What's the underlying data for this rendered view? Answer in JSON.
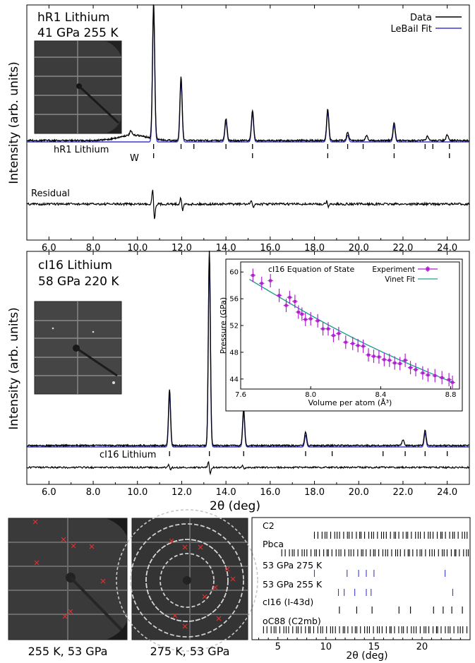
{
  "panel_a": {
    "title_line1": "hR1 Lithium",
    "title_line2": "41 GPa 255 K",
    "legend": [
      {
        "label": "Data",
        "color": "#000000"
      },
      {
        "label": "LeBail Fit",
        "color": "#3a3ad0"
      }
    ],
    "ylabel": "Intensity (arb. units)",
    "phase_labels": [
      "hR1 Lithium",
      "W"
    ],
    "residual_label": "Residual",
    "xticks": [
      "6.0",
      "8.0",
      "10.0",
      "12.0",
      "14.0",
      "16.0",
      "18.0",
      "20.0",
      "22.0",
      "24.0"
    ]
  },
  "panel_b": {
    "title_line1": "cI16 Lithium",
    "title_line2": "58 GPa 220 K",
    "ylabel": "Intensity (arb. units)",
    "phase_label": "cI16 Lithium",
    "xlabel": "2θ (deg)",
    "xticks": [
      "6.0",
      "8.0",
      "10.0",
      "12.0",
      "14.0",
      "16.0",
      "18.0",
      "20.0",
      "22.0",
      "24.0"
    ],
    "inset": {
      "title": "cI16 Equation of State",
      "legend": [
        {
          "label": "Experiment",
          "color": "#b020d0"
        },
        {
          "label": "Vinet Fit",
          "color": "#20a090"
        }
      ],
      "xlabel": "Volume per atom (Å³)",
      "ylabel": "Pressure (GPa)",
      "xticks": [
        "7.6",
        "8.0",
        "8.4",
        "8.8"
      ],
      "yticks": [
        "44",
        "48",
        "52",
        "56",
        "60"
      ]
    }
  },
  "panel_c": {
    "captions": [
      "255 K, 53 GPa",
      "275 K, 53 GPa"
    ],
    "tick_rows": [
      "C2",
      "Pbca",
      "53 GPa 275 K",
      "53 GPa 255 K",
      "cI16 (I-43d)",
      "oC88 (C2mb)"
    ],
    "xticks": [
      "5",
      "10",
      "15",
      "20"
    ],
    "xlabel": "2θ (deg)"
  },
  "colors": {
    "data": "#000000",
    "fit": "#3a3ad0",
    "experiment": "#b020d0",
    "vinet": "#20a090",
    "marker": "#e03030"
  },
  "chart_data": [
    {
      "type": "line",
      "title": "hR1 Lithium 41 GPa 255 K",
      "xlabel": "",
      "ylabel": "Intensity (arb. units)",
      "xlim": [
        5.0,
        25.0
      ],
      "series": [
        {
          "name": "Data",
          "peaks": [
            [
              9.7,
              0.03
            ],
            [
              10.73,
              1.0
            ],
            [
              11.97,
              0.47
            ],
            [
              14.0,
              0.16
            ],
            [
              15.2,
              0.22
            ],
            [
              18.6,
              0.23
            ],
            [
              19.5,
              0.06
            ],
            [
              20.35,
              0.04
            ],
            [
              21.6,
              0.13
            ],
            [
              23.1,
              0.03
            ],
            [
              24.0,
              0.04
            ]
          ]
        },
        {
          "name": "LeBail Fit",
          "peaks": [
            [
              10.73,
              0.98
            ],
            [
              11.97,
              0.45
            ],
            [
              14.0,
              0.15
            ],
            [
              15.2,
              0.21
            ],
            [
              18.6,
              0.22
            ],
            [
              19.5,
              0.05
            ],
            [
              21.6,
              0.12
            ]
          ]
        }
      ],
      "tick_marks": {
        "hR1 Lithium": [
          10.73,
          11.97,
          12.55,
          14.0,
          15.2,
          18.6,
          19.5,
          20.2,
          21.6,
          23.0,
          23.35,
          24.1
        ],
        "W": [
          10.73,
          15.2,
          18.6,
          21.6,
          24.1
        ]
      },
      "residual": {
        "spikes": [
          [
            10.73,
            0.55
          ],
          [
            12.0,
            0.25
          ],
          [
            15.2,
            0.12
          ],
          [
            18.6,
            0.1
          ]
        ]
      }
    },
    {
      "type": "line",
      "title": "cI16 Lithium 58 GPa 220 K",
      "xlabel": "2θ (deg)",
      "ylabel": "Intensity (arb. units)",
      "xlim": [
        5.0,
        25.0
      ],
      "series": [
        {
          "name": "Data",
          "peaks": [
            [
              11.45,
              0.29
            ],
            [
              13.25,
              1.0
            ],
            [
              14.8,
              0.19
            ],
            [
              17.6,
              0.07
            ],
            [
              22.0,
              0.03
            ],
            [
              23.0,
              0.08
            ]
          ]
        },
        {
          "name": "LeBail Fit",
          "peaks": [
            [
              11.45,
              0.27
            ],
            [
              13.25,
              0.98
            ],
            [
              14.8,
              0.18
            ],
            [
              17.6,
              0.06
            ],
            [
              23.0,
              0.07
            ]
          ]
        }
      ],
      "tick_marks": {
        "cI16 Lithium": [
          11.45,
          13.25,
          14.8,
          17.6,
          18.8,
          21.1,
          22.1,
          23.0,
          24.0
        ]
      },
      "residual": {
        "spikes": [
          [
            11.45,
            0.2
          ],
          [
            13.25,
            0.45
          ],
          [
            14.8,
            0.12
          ]
        ]
      }
    },
    {
      "type": "scatter",
      "title": "cI16 Equation of State",
      "xlabel": "Volume per atom (Å³)",
      "ylabel": "Pressure (GPa)",
      "xlim": [
        7.6,
        8.85
      ],
      "ylim": [
        42.5,
        61.5
      ],
      "series": [
        {
          "name": "Experiment",
          "x": [
            7.67,
            7.72,
            7.77,
            7.82,
            7.86,
            7.88,
            7.91,
            7.93,
            7.95,
            7.97,
            8.0,
            8.04,
            8.07,
            8.1,
            8.13,
            8.16,
            8.2,
            8.24,
            8.27,
            8.3,
            8.33,
            8.36,
            8.39,
            8.42,
            8.45,
            8.48,
            8.51,
            8.54,
            8.57,
            8.6,
            8.64,
            8.67,
            8.71,
            8.75,
            8.79,
            8.81
          ],
          "y": [
            59.5,
            58.3,
            58.7,
            56.5,
            55.0,
            56.2,
            55.6,
            54.0,
            53.7,
            52.9,
            53.0,
            52.7,
            51.5,
            51.5,
            50.5,
            50.8,
            49.5,
            49.3,
            49.0,
            48.9,
            47.6,
            47.4,
            47.3,
            46.9,
            46.8,
            46.4,
            46.3,
            46.8,
            45.7,
            45.4,
            44.9,
            44.6,
            44.5,
            44.2,
            43.9,
            43.5
          ],
          "yerr": 1.0,
          "xerr": 0.015
        },
        {
          "name": "Vinet Fit",
          "x": [
            7.65,
            8.82
          ],
          "y": [
            58.9,
            43.4
          ],
          "curve": "vinet"
        }
      ]
    },
    {
      "type": "tick_chart",
      "xlabel": "2θ (deg)",
      "xlim": [
        2.3,
        25.0
      ],
      "rows": [
        {
          "name": "C2",
          "color": "#000000",
          "ticks": "dense",
          "from": 8.8,
          "to": 25.0
        },
        {
          "name": "Pbca",
          "color": "#000000",
          "ticks": "dense",
          "from": 5.4,
          "to": 25.0
        },
        {
          "name": "53 GPa 275 K",
          "color": "#3a3ad0",
          "ticks": [
            8.8,
            12.2,
            13.4,
            14.2,
            15.0,
            22.4
          ]
        },
        {
          "name": "53 GPa 255 K",
          "color": "#3a3ad0",
          "ticks": [
            11.3,
            11.9,
            13.0,
            14.2,
            14.7,
            23.2
          ]
        },
        {
          "name": "cI16 (I-43d)",
          "color": "#000000",
          "ticks": [
            11.4,
            13.2,
            14.8,
            17.6,
            18.8,
            21.2,
            22.2,
            23.1,
            24.2
          ]
        },
        {
          "name": "oC88 (C2mb)",
          "color": "#000000",
          "ticks": "dense",
          "from": 3.5,
          "to": 25.0
        }
      ]
    }
  ]
}
